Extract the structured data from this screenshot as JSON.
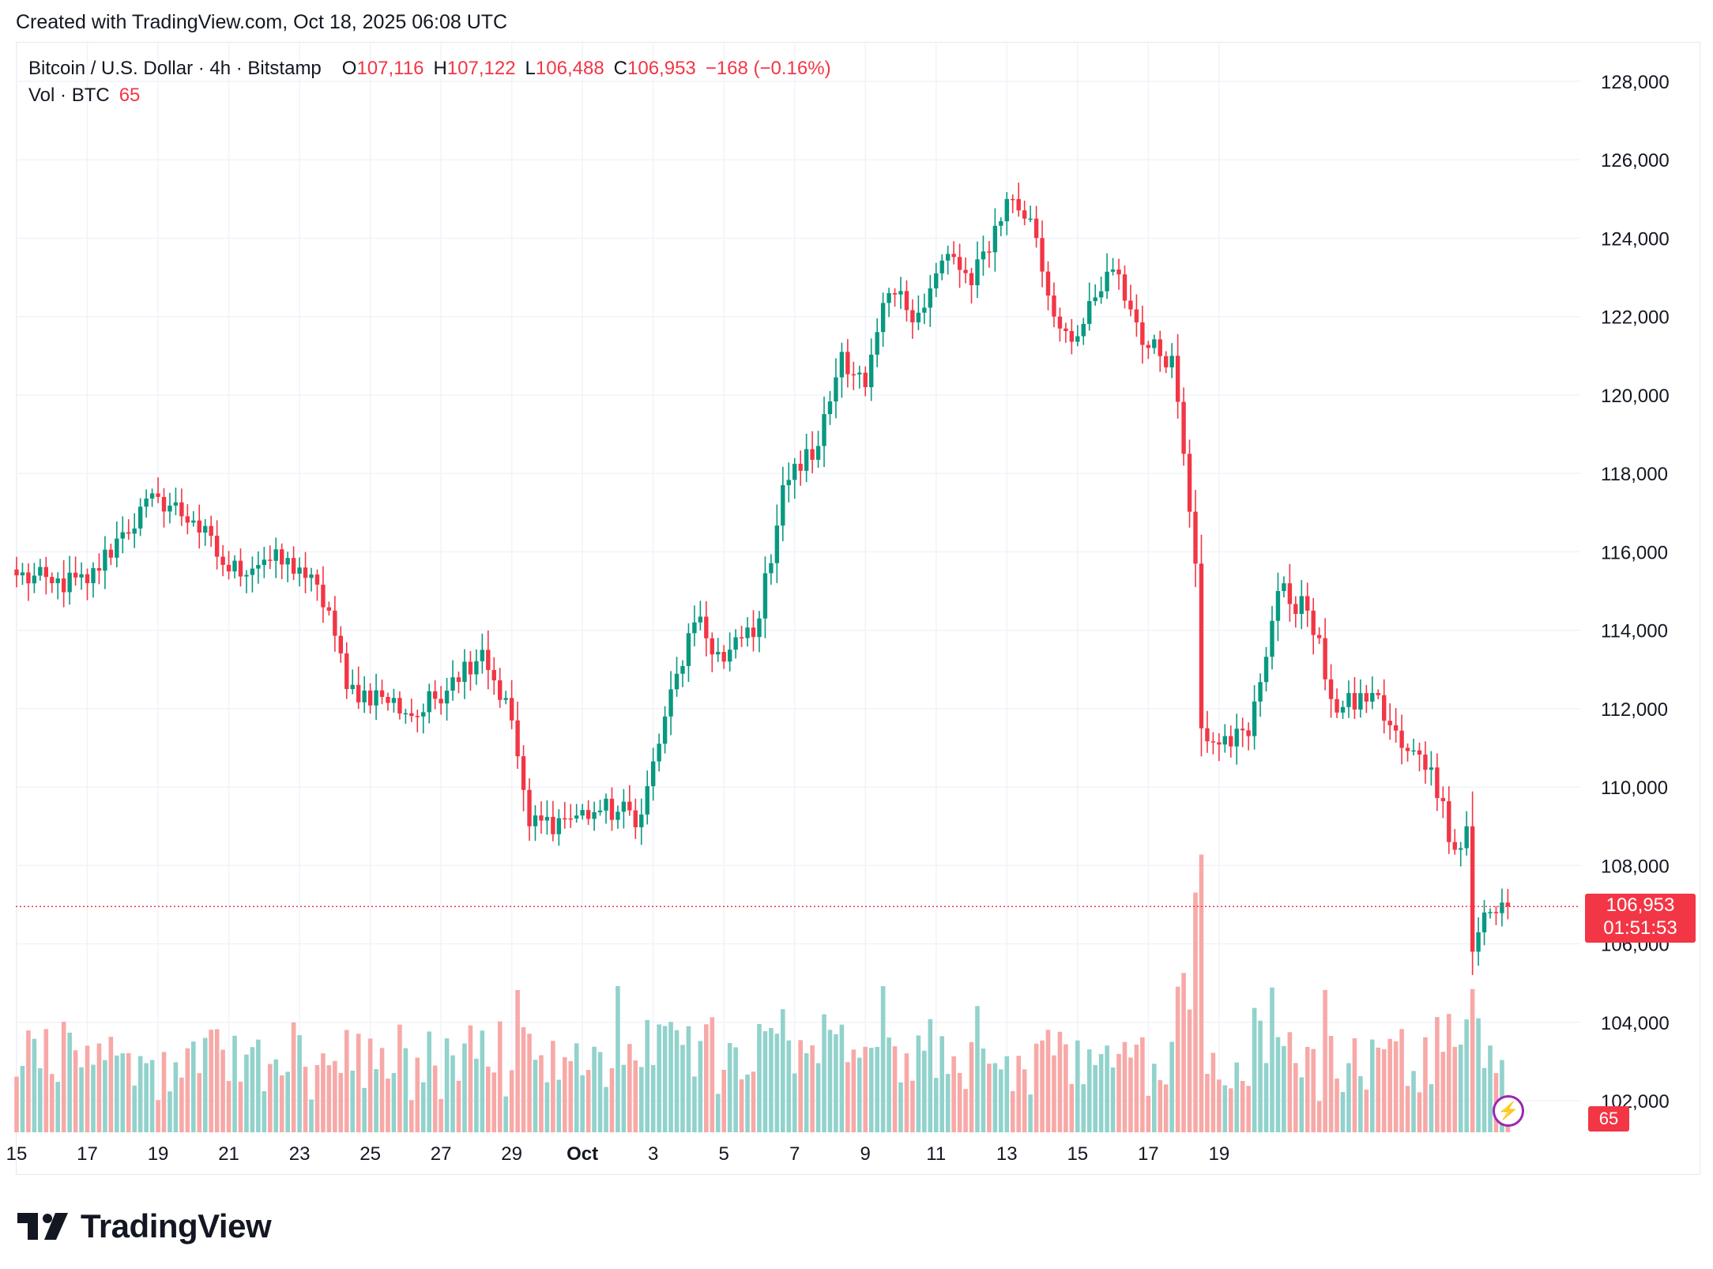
{
  "header": {
    "created_text": "Created with TradingView.com, Oct 18, 2025 06:08 UTC"
  },
  "legend": {
    "symbol": "Bitcoin / U.S. Dollar · 4h · Bitstamp",
    "open_label": "O",
    "open_value": "107,116",
    "high_label": "H",
    "high_value": "107,122",
    "low_label": "L",
    "low_value": "106,488",
    "close_label": "C",
    "close_value": "106,953",
    "change": "−168 (−0.16%)",
    "volume_label": "Vol · BTC",
    "volume_value": "65"
  },
  "price_tag": {
    "price": "106,953",
    "countdown": "01:51:53"
  },
  "volume_tag": {
    "value": "65"
  },
  "brand": {
    "name": "TradingView",
    "logo_icon": "tradingview-logo-icon"
  },
  "colors": {
    "up": "#089981",
    "down": "#f23645",
    "up_volume": "#92d2cc",
    "down_volume": "#f7a9a7",
    "grid": "#f0f3fa"
  },
  "chart_data": {
    "type": "candlestick",
    "timeframe": "4h",
    "ylim": [
      101000,
      129000
    ],
    "y_ticks": [
      "102,000",
      "104,000",
      "106,000",
      "108,000",
      "110,000",
      "112,000",
      "114,000",
      "116,000",
      "118,000",
      "120,000",
      "122,000",
      "124,000",
      "126,000",
      "128,000"
    ],
    "x_ticks": [
      "15",
      "17",
      "19",
      "21",
      "23",
      "25",
      "27",
      "29",
      "Oct",
      "3",
      "5",
      "7",
      "9",
      "11",
      "13",
      "15",
      "17",
      "19"
    ],
    "anchors": [
      {
        "t": 0,
        "price": 115400
      },
      {
        "t": 6,
        "price": 115200
      },
      {
        "t": 12,
        "price": 115200
      },
      {
        "t": 18,
        "price": 116500
      },
      {
        "t": 24,
        "price": 117400
      },
      {
        "t": 30,
        "price": 116800
      },
      {
        "t": 36,
        "price": 115500
      },
      {
        "t": 42,
        "price": 115800
      },
      {
        "t": 48,
        "price": 115600
      },
      {
        "t": 53,
        "price": 114500
      },
      {
        "t": 56,
        "price": 112500
      },
      {
        "t": 62,
        "price": 112300
      },
      {
        "t": 68,
        "price": 111800
      },
      {
        "t": 74,
        "price": 112800
      },
      {
        "t": 79,
        "price": 113500
      },
      {
        "t": 84,
        "price": 111700
      },
      {
        "t": 87,
        "price": 109000
      },
      {
        "t": 93,
        "price": 109200
      },
      {
        "t": 99,
        "price": 109400
      },
      {
        "t": 106,
        "price": 109300
      },
      {
        "t": 110,
        "price": 111800
      },
      {
        "t": 115,
        "price": 114200
      },
      {
        "t": 120,
        "price": 113200
      },
      {
        "t": 126,
        "price": 114300
      },
      {
        "t": 130,
        "price": 117700
      },
      {
        "t": 136,
        "price": 118700
      },
      {
        "t": 140,
        "price": 121100
      },
      {
        "t": 144,
        "price": 120200
      },
      {
        "t": 148,
        "price": 122600
      },
      {
        "t": 153,
        "price": 122100
      },
      {
        "t": 158,
        "price": 123600
      },
      {
        "t": 162,
        "price": 122800
      },
      {
        "t": 168,
        "price": 125000
      },
      {
        "t": 172,
        "price": 124500
      },
      {
        "t": 176,
        "price": 122000
      },
      {
        "t": 180,
        "price": 121500
      },
      {
        "t": 186,
        "price": 123200
      },
      {
        "t": 192,
        "price": 121200
      },
      {
        "t": 196,
        "price": 121000
      },
      {
        "t": 198,
        "price": 118500
      },
      {
        "t": 200,
        "price": 115700
      },
      {
        "t": 201,
        "price": 111500
      },
      {
        "t": 205,
        "price": 111300
      },
      {
        "t": 209,
        "price": 111300
      },
      {
        "t": 214,
        "price": 115000
      },
      {
        "t": 219,
        "price": 114500
      },
      {
        "t": 224,
        "price": 111900
      },
      {
        "t": 230,
        "price": 112400
      },
      {
        "t": 235,
        "price": 111000
      },
      {
        "t": 240,
        "price": 110500
      },
      {
        "t": 244,
        "price": 108400
      },
      {
        "t": 246,
        "price": 109000
      },
      {
        "t": 247,
        "price": 105800
      },
      {
        "t": 249,
        "price": 106800
      },
      {
        "t": 253,
        "price": 106953
      }
    ],
    "volume_ylim": [
      0,
      10
    ],
    "current_price": 106953
  }
}
